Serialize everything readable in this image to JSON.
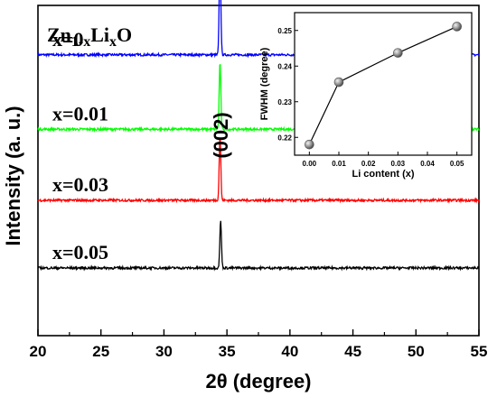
{
  "chart_data": [
    {
      "type": "line",
      "title": "Zn1-xLixO",
      "title_parts": {
        "base1": "Zn",
        "sub1": "1-x",
        "base2": "Li",
        "sub2": "x",
        "base3": "O"
      },
      "xlabel": "2θ (degree)",
      "ylabel": "Intensity (a. u.)",
      "xlim": [
        20,
        55
      ],
      "xticks": [
        "20",
        "25",
        "30",
        "35",
        "40",
        "45",
        "50",
        "55"
      ],
      "yticks_shown": false,
      "peak_annotation": {
        "text": "(002)",
        "x": 34.5
      },
      "series": [
        {
          "name": "x=0",
          "color": "#0000ff",
          "baseline": 4.15,
          "peak_x": 34.45,
          "peak_height": 1.45
        },
        {
          "name": "x=0.01",
          "color": "#00ff00",
          "baseline": 3.05,
          "peak_x": 34.45,
          "peak_height": 1.0
        },
        {
          "name": "x=0.03",
          "color": "#ff0000",
          "baseline": 2.0,
          "peak_x": 34.45,
          "peak_height": 0.95
        },
        {
          "name": "x=0.05",
          "color": "#000000",
          "baseline": 1.0,
          "peak_x": 34.5,
          "peak_height": 0.7
        }
      ]
    },
    {
      "type": "line",
      "xlabel": "Li content (x)",
      "ylabel": "FWHM (degree)",
      "xlim": [
        -0.005,
        0.055
      ],
      "ylim": [
        0.215,
        0.255
      ],
      "xticks": [
        "0.00",
        "0.01",
        "0.02",
        "0.03",
        "0.04",
        "0.05"
      ],
      "yticks": [
        "0.22",
        "0.23",
        "0.24",
        "0.25"
      ],
      "x": [
        0.0,
        0.01,
        0.03,
        0.05
      ],
      "y": [
        0.218,
        0.2355,
        0.2437,
        0.2511
      ],
      "marker": "sphere",
      "color": "#000000"
    }
  ]
}
